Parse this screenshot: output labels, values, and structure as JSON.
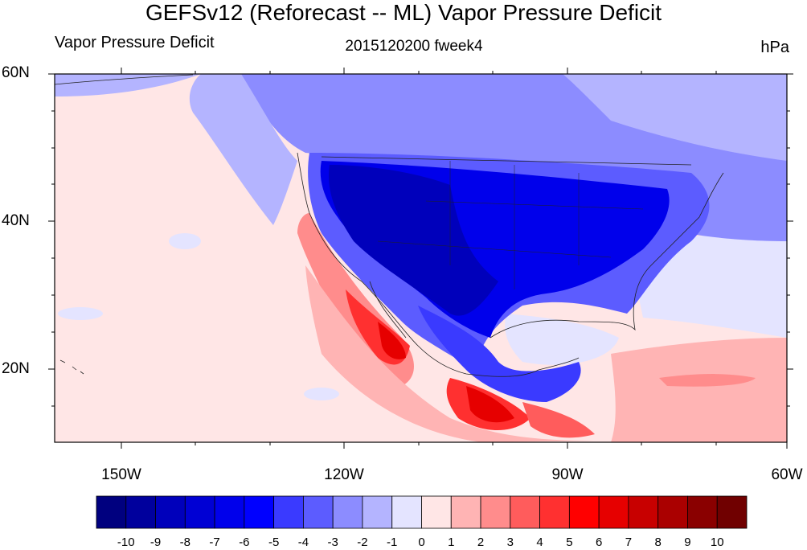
{
  "title": "GEFSv12 (Reforecast -- ML) Vapor Pressure Deficit",
  "subtitle_left": "Vapor Pressure Deficit",
  "subtitle_center": "2015120200 fweek4",
  "subtitle_right": "hPa",
  "map": {
    "lon_range": [
      -160,
      -62
    ],
    "lat_range": [
      10,
      60
    ],
    "y_ticks": [
      "60N",
      "40N",
      "20N"
    ],
    "x_ticks": [
      "150W",
      "120W",
      "90W",
      "60W"
    ]
  },
  "colorbar": {
    "labels": [
      "-10",
      "-9",
      "-8",
      "-7",
      "-6",
      "-5",
      "-4",
      "-3",
      "-2",
      "-1",
      "0",
      "1",
      "2",
      "3",
      "4",
      "5",
      "6",
      "7",
      "8",
      "9",
      "10"
    ],
    "colors": [
      "#00007f",
      "#00009d",
      "#0000bb",
      "#0000d4",
      "#0000eb",
      "#0000ff",
      "#3a3aff",
      "#5c5cff",
      "#8c8cff",
      "#b4b4ff",
      "#e4e4ff",
      "#ffe6e6",
      "#ffb4b4",
      "#ff8c8c",
      "#ff5c5c",
      "#ff3030",
      "#ff0000",
      "#e60000",
      "#c80000",
      "#aa0000",
      "#8a0000",
      "#700000"
    ]
  }
}
